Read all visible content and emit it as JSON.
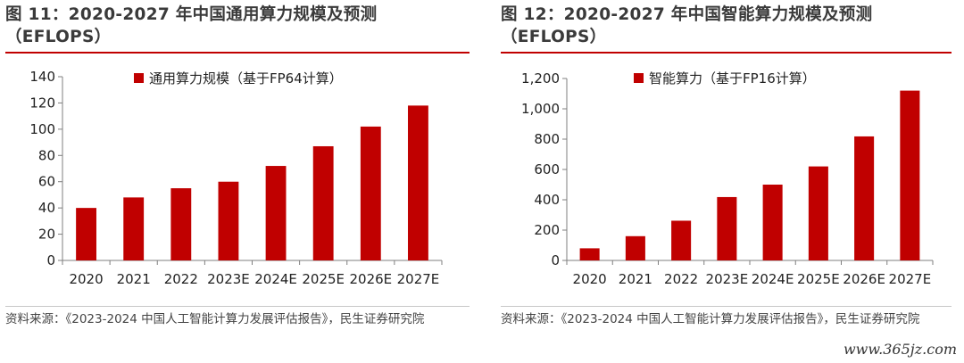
{
  "figures": [
    {
      "title": "图 11：2020-2027 年中国通用算力规模及预测（EFLOPS）",
      "source": "资料来源：《2023-2024 中国人工智能计算力发展评估报告》，民生证券研究院"
    },
    {
      "title": "图 12：2020-2027 年中国智能算力规模及预测（EFLOPS）",
      "source": "资料来源：《2023-2024 中国人工智能计算力发展评估报告》，民生证券研究院"
    }
  ],
  "watermark": "www.365jz.com",
  "colors": {
    "bar": "#c00000",
    "axis": "#7f7f7f",
    "title_rule": "#c00000"
  },
  "chart_data": [
    {
      "type": "bar",
      "title": "",
      "xlabel": "",
      "ylabel": "",
      "categories": [
        "2020",
        "2021",
        "2022",
        "2023E",
        "2024E",
        "2025E",
        "2026E",
        "2027E"
      ],
      "series": [
        {
          "name": "通用算力规模（基于FP64计算）",
          "values": [
            40,
            48,
            55,
            60,
            72,
            87,
            102,
            118
          ]
        }
      ],
      "ylim": [
        0,
        140
      ],
      "yticks": [
        0,
        20,
        40,
        60,
        80,
        100,
        120,
        140
      ],
      "ytick_labels": [
        "0",
        "20",
        "40",
        "60",
        "80",
        "100",
        "120",
        "140"
      ],
      "grid": false,
      "legend": "top-center"
    },
    {
      "type": "bar",
      "title": "",
      "xlabel": "",
      "ylabel": "",
      "categories": [
        "2020",
        "2021",
        "2022",
        "2023E",
        "2024E",
        "2025E",
        "2026E",
        "2027E"
      ],
      "series": [
        {
          "name": "智能算力（基于FP16计算）",
          "values": [
            80,
            160,
            262,
            418,
            500,
            620,
            818,
            1120
          ]
        }
      ],
      "ylim": [
        0,
        1200
      ],
      "yticks": [
        0,
        200,
        400,
        600,
        800,
        1000,
        1200
      ],
      "ytick_labels": [
        "0",
        "200",
        "400",
        "600",
        "800",
        "1,000",
        "1,200"
      ],
      "grid": false,
      "legend": "top-center"
    }
  ]
}
